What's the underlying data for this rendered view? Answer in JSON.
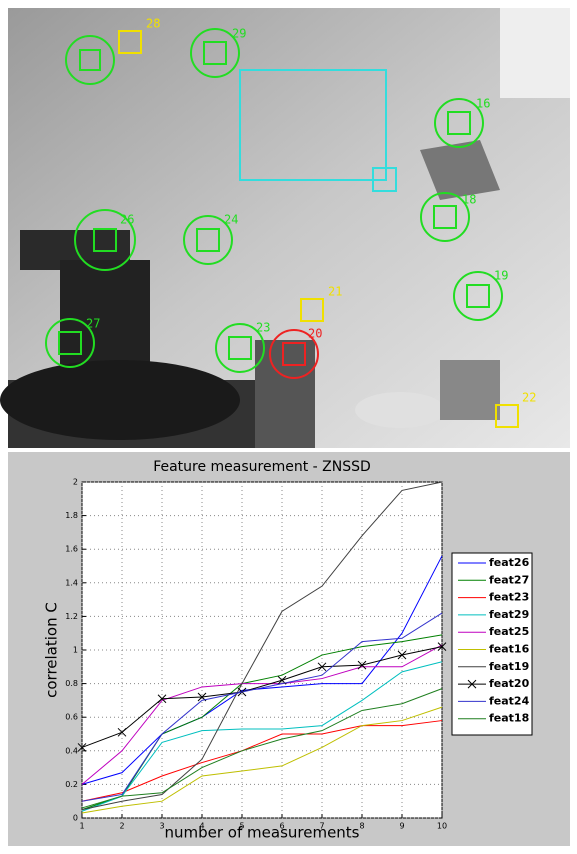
{
  "overlay": {
    "features": [
      {
        "label": "28",
        "color": "#f0e000"
      },
      {
        "label": "29",
        "color": "#22dd22"
      },
      {
        "label": "16",
        "color": "#22dd22"
      },
      {
        "label": "18",
        "color": "#22dd22"
      },
      {
        "label": "26",
        "color": "#22dd22"
      },
      {
        "label": "24",
        "color": "#22dd22"
      },
      {
        "label": "19",
        "color": "#22dd22"
      },
      {
        "label": "21",
        "color": "#f0e000"
      },
      {
        "label": "20",
        "color": "#ee2222"
      },
      {
        "label": "23",
        "color": "#22dd22"
      },
      {
        "label": "27",
        "color": "#22dd22"
      },
      {
        "label": "22",
        "color": "#f0e000"
      }
    ]
  },
  "chart_data": {
    "type": "line",
    "title": "Feature measurement - ZNSSD",
    "x_label": "number of measurements",
    "y_label": "correlation C",
    "x": [
      1,
      2,
      3,
      4,
      5,
      6,
      7,
      8,
      9,
      10
    ],
    "xlim": [
      1,
      10
    ],
    "ylim": [
      0,
      2
    ],
    "xticks": [
      1,
      2,
      3,
      4,
      5,
      6,
      7,
      8,
      9,
      10
    ],
    "yticks": [
      0,
      0.2,
      0.4,
      0.6,
      0.8,
      1,
      1.2,
      1.4,
      1.6,
      1.8,
      2
    ],
    "grid": true,
    "legend": "outside-right",
    "series": [
      {
        "name": "feat26",
        "color": "#0000ff",
        "values": [
          0.2,
          0.27,
          0.5,
          0.6,
          0.76,
          0.78,
          0.8,
          0.8,
          1.1,
          1.56
        ]
      },
      {
        "name": "feat27",
        "color": "#008000",
        "values": [
          0.05,
          0.13,
          0.5,
          0.6,
          0.8,
          0.85,
          0.97,
          1.02,
          1.05,
          1.09
        ]
      },
      {
        "name": "feat23",
        "color": "#ff0000",
        "values": [
          0.1,
          0.15,
          0.25,
          0.33,
          0.4,
          0.5,
          0.5,
          0.55,
          0.55,
          0.58
        ]
      },
      {
        "name": "feat29",
        "color": "#00bfbf",
        "values": [
          0.04,
          0.13,
          0.45,
          0.52,
          0.53,
          0.53,
          0.55,
          0.7,
          0.87,
          0.93
        ]
      },
      {
        "name": "feat25",
        "color": "#bf00bf",
        "values": [
          0.2,
          0.4,
          0.7,
          0.78,
          0.8,
          0.8,
          0.83,
          0.9,
          0.9,
          1.03
        ]
      },
      {
        "name": "feat16",
        "color": "#bfbf00",
        "values": [
          0.03,
          0.07,
          0.1,
          0.25,
          0.28,
          0.31,
          0.42,
          0.55,
          0.58,
          0.66
        ]
      },
      {
        "name": "feat19",
        "color": "#404040",
        "values": [
          0.05,
          0.1,
          0.14,
          0.35,
          0.8,
          1.23,
          1.38,
          1.68,
          1.95,
          2.0
        ]
      },
      {
        "name": "feat20",
        "color": "#000000",
        "marker": "x",
        "values": [
          0.42,
          0.51,
          0.71,
          0.72,
          0.75,
          0.82,
          0.9,
          0.91,
          0.97,
          1.02
        ]
      },
      {
        "name": "feat24",
        "color": "#3333cc",
        "values": [
          0.1,
          0.14,
          0.5,
          0.7,
          0.75,
          0.8,
          0.85,
          1.05,
          1.07,
          1.22
        ]
      },
      {
        "name": "feat18",
        "color": "#1f7f1f",
        "values": [
          0.06,
          0.13,
          0.15,
          0.3,
          0.4,
          0.47,
          0.52,
          0.64,
          0.68,
          0.77
        ]
      }
    ]
  }
}
